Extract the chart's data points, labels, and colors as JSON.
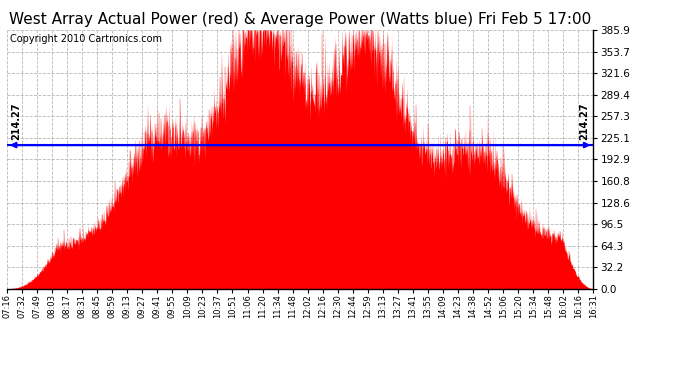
{
  "title": "West Array Actual Power (red) & Average Power (Watts blue) Fri Feb 5 17:00",
  "copyright": "Copyright 2010 Cartronics.com",
  "average_power": 214.27,
  "y_max": 385.9,
  "y_ticks": [
    0.0,
    32.2,
    64.3,
    96.5,
    128.6,
    160.8,
    192.9,
    225.1,
    257.3,
    289.4,
    321.6,
    353.7,
    385.9
  ],
  "background_color": "#ffffff",
  "fill_color": "#ff0000",
  "line_color": "#0000ff",
  "grid_color": "#b0b0b0",
  "title_fontsize": 11,
  "copyright_fontsize": 7,
  "avg_label_fontsize": 7,
  "x_tick_labels": [
    "07:16",
    "07:32",
    "07:49",
    "08:03",
    "08:17",
    "08:31",
    "08:45",
    "08:59",
    "09:13",
    "09:27",
    "09:41",
    "09:55",
    "10:09",
    "10:23",
    "10:37",
    "10:51",
    "11:06",
    "11:20",
    "11:34",
    "11:48",
    "12:02",
    "12:16",
    "12:30",
    "12:44",
    "12:59",
    "13:13",
    "13:27",
    "13:41",
    "13:55",
    "14:09",
    "14:23",
    "14:38",
    "14:52",
    "15:06",
    "15:20",
    "15:34",
    "15:48",
    "16:02",
    "16:16",
    "16:31"
  ]
}
